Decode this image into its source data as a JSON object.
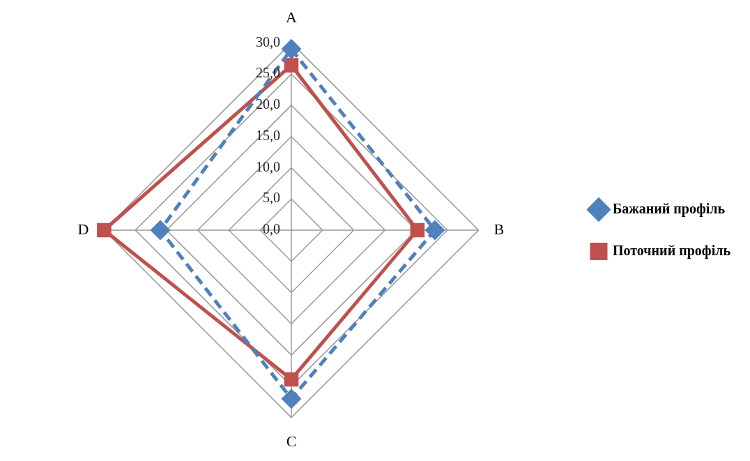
{
  "chart_data": {
    "type": "radar",
    "categories": [
      "A",
      "B",
      "C",
      "D"
    ],
    "series": [
      {
        "name": "Бажаний профіль",
        "color": "#4f81bd",
        "values": [
          29.0,
          23.0,
          27.0,
          21.0
        ],
        "marker": "diamond",
        "line_style": "dashed"
      },
      {
        "name": "Поточний профіль",
        "color": "#c0504d",
        "values": [
          26.4,
          20.2,
          23.9,
          30.0
        ],
        "marker": "square",
        "line_style": "solid"
      }
    ],
    "ylim": [
      0,
      30
    ],
    "yticks": [
      {
        "value": 0,
        "label": "0,0"
      },
      {
        "value": 5,
        "label": "5,0"
      },
      {
        "value": 10,
        "label": "10,0"
      },
      {
        "value": 15,
        "label": "15,0"
      },
      {
        "value": 20,
        "label": "20,0"
      },
      {
        "value": 25,
        "label": "25,0"
      },
      {
        "value": 30,
        "label": "30,0"
      }
    ],
    "grid": true,
    "legend": "right"
  }
}
